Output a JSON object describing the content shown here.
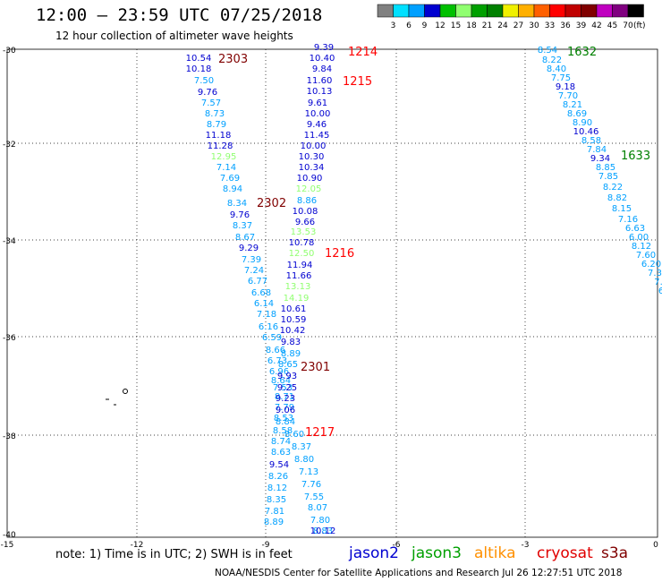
{
  "header": {
    "title": "12:00 – 23:59 UTC 07/25/2018",
    "subtitle": "12 hour collection of altimeter wave heights"
  },
  "legend": {
    "unit": "(ft)",
    "ticks": [
      "3",
      "6",
      "9",
      "12",
      "15",
      "18",
      "21",
      "24",
      "27",
      "30",
      "33",
      "36",
      "39",
      "42",
      "45",
      "70"
    ],
    "colors": [
      "#808080",
      "#00e0ff",
      "#00a0ff",
      "#0000d0",
      "#00c000",
      "#90ff70",
      "#00a000",
      "#008000",
      "#f0f000",
      "#ffb000",
      "#ff6000",
      "#ff0000",
      "#c00000",
      "#800000",
      "#c000c0",
      "#800080",
      "#000000"
    ]
  },
  "axes": {
    "lat_labels": [
      "-30",
      "-32",
      "-34",
      "-36",
      "-38",
      "-40"
    ],
    "lon_labels": [
      "-15",
      "-12",
      "-9",
      "-6",
      "-3",
      "0"
    ]
  },
  "tracks": [
    {
      "name": "track-2303",
      "time_label": "2303",
      "time_color": "#800000",
      "points": [
        {
          "v": "10.54",
          "c": "#0000d0"
        },
        {
          "v": "10.18",
          "c": "#0000d0"
        },
        {
          "v": "7.50",
          "c": "#00a0ff"
        },
        {
          "v": "9.76",
          "c": "#0000d0"
        },
        {
          "v": "7.57",
          "c": "#00a0ff"
        },
        {
          "v": "8.73",
          "c": "#00a0ff"
        },
        {
          "v": "8.79",
          "c": "#00a0ff"
        },
        {
          "v": "11.18",
          "c": "#0000d0"
        },
        {
          "v": "11.28",
          "c": "#0000d0"
        },
        {
          "v": "12.95",
          "c": "#90ff70"
        },
        {
          "v": "7.14",
          "c": "#00a0ff"
        },
        {
          "v": "7.69",
          "c": "#00a0ff"
        },
        {
          "v": "8.94",
          "c": "#00a0ff"
        },
        {
          "v": "8.34",
          "c": "#00a0ff"
        },
        {
          "v": "9.76",
          "c": "#0000d0"
        },
        {
          "v": "8.37",
          "c": "#00a0ff"
        },
        {
          "v": "8.67",
          "c": "#00a0ff"
        },
        {
          "v": "9.29",
          "c": "#0000d0"
        },
        {
          "v": "7.39",
          "c": "#00a0ff"
        },
        {
          "v": "7.24",
          "c": "#00a0ff"
        },
        {
          "v": "6.77",
          "c": "#00a0ff"
        },
        {
          "v": "6.68",
          "c": "#00a0ff"
        },
        {
          "v": "6.14",
          "c": "#00a0ff"
        },
        {
          "v": "7.18",
          "c": "#00a0ff"
        },
        {
          "v": "6.16",
          "c": "#00a0ff"
        },
        {
          "v": "6.59",
          "c": "#00a0ff"
        },
        {
          "v": "8.66",
          "c": "#00a0ff"
        },
        {
          "v": "6.73",
          "c": "#00a0ff"
        },
        {
          "v": "6.96",
          "c": "#00a0ff"
        },
        {
          "v": "8.64",
          "c": "#00a0ff"
        },
        {
          "v": "7.53",
          "c": "#00a0ff"
        },
        {
          "v": "8.71",
          "c": "#00a0ff"
        },
        {
          "v": "7.79",
          "c": "#00a0ff"
        },
        {
          "v": "8.53",
          "c": "#00a0ff"
        },
        {
          "v": "8.58",
          "c": "#00a0ff"
        },
        {
          "v": "8.74",
          "c": "#00a0ff"
        },
        {
          "v": "8.63",
          "c": "#00a0ff"
        },
        {
          "v": "9.54",
          "c": "#0000d0"
        },
        {
          "v": "8.26",
          "c": "#00a0ff"
        },
        {
          "v": "8.12",
          "c": "#00a0ff"
        },
        {
          "v": "8.35",
          "c": "#00a0ff"
        },
        {
          "v": "7.81",
          "c": "#00a0ff"
        },
        {
          "v": "8.89",
          "c": "#00a0ff"
        }
      ]
    },
    {
      "name": "track-1214",
      "time_label": "1214",
      "time_color": "#ff0000",
      "points": [
        {
          "v": "9.39",
          "c": "#0000d0"
        },
        {
          "v": "10.40",
          "c": "#0000d0"
        },
        {
          "v": "9.84",
          "c": "#0000d0"
        },
        {
          "v": "11.60",
          "c": "#0000d0"
        },
        {
          "v": "10.13",
          "c": "#0000d0"
        },
        {
          "v": "9.61",
          "c": "#0000d0"
        },
        {
          "v": "10.00",
          "c": "#0000d0"
        },
        {
          "v": "9.46",
          "c": "#0000d0"
        },
        {
          "v": "11.45",
          "c": "#0000d0"
        },
        {
          "v": "10.00",
          "c": "#0000d0"
        },
        {
          "v": "10.30",
          "c": "#0000d0"
        },
        {
          "v": "10.34",
          "c": "#0000d0"
        },
        {
          "v": "10.90",
          "c": "#0000d0"
        },
        {
          "v": "12.05",
          "c": "#90ff70"
        },
        {
          "v": "8.86",
          "c": "#00a0ff"
        },
        {
          "v": "10.08",
          "c": "#0000d0"
        },
        {
          "v": "9.66",
          "c": "#0000d0"
        },
        {
          "v": "13.53",
          "c": "#90ff70"
        },
        {
          "v": "10.78",
          "c": "#0000d0"
        },
        {
          "v": "12.50",
          "c": "#90ff70"
        },
        {
          "v": "11.94",
          "c": "#0000d0"
        },
        {
          "v": "11.66",
          "c": "#0000d0"
        },
        {
          "v": "13.13",
          "c": "#90ff70"
        },
        {
          "v": "14.19",
          "c": "#90ff70"
        },
        {
          "v": "10.61",
          "c": "#0000d0"
        },
        {
          "v": "10.59",
          "c": "#0000d0"
        },
        {
          "v": "10.42",
          "c": "#0000d0"
        },
        {
          "v": "9.83",
          "c": "#0000d0"
        },
        {
          "v": "8.89",
          "c": "#00a0ff"
        },
        {
          "v": "8.65",
          "c": "#00a0ff"
        },
        {
          "v": "9.93",
          "c": "#0000d0"
        },
        {
          "v": "9.25",
          "c": "#0000d0"
        },
        {
          "v": "9.23",
          "c": "#0000d0"
        },
        {
          "v": "9.06",
          "c": "#0000d0"
        },
        {
          "v": "8.84",
          "c": "#00a0ff"
        },
        {
          "v": "8.60",
          "c": "#00a0ff"
        },
        {
          "v": "8.37",
          "c": "#00a0ff"
        },
        {
          "v": "8.80",
          "c": "#00a0ff"
        },
        {
          "v": "7.13",
          "c": "#00a0ff"
        },
        {
          "v": "7.76",
          "c": "#00a0ff"
        },
        {
          "v": "7.55",
          "c": "#00a0ff"
        },
        {
          "v": "8.07",
          "c": "#00a0ff"
        },
        {
          "v": "7.80",
          "c": "#00a0ff"
        },
        {
          "v": "8.83",
          "c": "#00a0ff"
        },
        {
          "v": "10.12",
          "c": "#0000d0"
        }
      ]
    },
    {
      "name": "track-1632",
      "time_label": "1632",
      "time_color": "#008000",
      "points": [
        {
          "v": "8.54",
          "c": "#00a0ff"
        },
        {
          "v": "8.22",
          "c": "#00a0ff"
        },
        {
          "v": "8.40",
          "c": "#00a0ff"
        },
        {
          "v": "7.75",
          "c": "#00a0ff"
        },
        {
          "v": "9.18",
          "c": "#0000d0"
        },
        {
          "v": "7.70",
          "c": "#00a0ff"
        },
        {
          "v": "8.21",
          "c": "#00a0ff"
        },
        {
          "v": "8.69",
          "c": "#00a0ff"
        },
        {
          "v": "8.90",
          "c": "#00a0ff"
        },
        {
          "v": "10.46",
          "c": "#0000d0"
        },
        {
          "v": "8.58",
          "c": "#00a0ff"
        },
        {
          "v": "7.84",
          "c": "#00a0ff"
        },
        {
          "v": "9.34",
          "c": "#0000d0"
        },
        {
          "v": "8.85",
          "c": "#00a0ff"
        },
        {
          "v": "7.85",
          "c": "#00a0ff"
        },
        {
          "v": "8.22",
          "c": "#00a0ff"
        },
        {
          "v": "8.82",
          "c": "#00a0ff"
        },
        {
          "v": "8.15",
          "c": "#00a0ff"
        },
        {
          "v": "7.16",
          "c": "#00a0ff"
        },
        {
          "v": "6.63",
          "c": "#00a0ff"
        },
        {
          "v": "6.00",
          "c": "#00a0ff"
        },
        {
          "v": "8.12",
          "c": "#00a0ff"
        },
        {
          "v": "7.60",
          "c": "#00a0ff"
        },
        {
          "v": "6.20",
          "c": "#00a0ff"
        },
        {
          "v": "7.3",
          "c": "#00a0ff"
        },
        {
          "v": "7.",
          "c": "#00a0ff"
        },
        {
          "v": "6",
          "c": "#00a0ff"
        }
      ]
    }
  ],
  "time_markers": [
    {
      "label": "2302",
      "color": "#800000"
    },
    {
      "label": "2301",
      "color": "#800000"
    },
    {
      "label": "1215",
      "color": "#ff0000"
    },
    {
      "label": "1216",
      "color": "#ff0000"
    },
    {
      "label": "1217",
      "color": "#ff0000"
    },
    {
      "label": "1633",
      "color": "#008000"
    }
  ],
  "footer": {
    "note": "note:  1) Time is in UTC;  2) SWH is in feet",
    "credit": "NOAA/NESDIS Center for Satellite Applications and Research     Jul 26 12:27:51 UTC 2018",
    "satellites": [
      {
        "name": "jason2",
        "color": "#0000d0"
      },
      {
        "name": "jason3",
        "color": "#00a000"
      },
      {
        "name": "altika",
        "color": "#ff9000"
      },
      {
        "name": "cryosat",
        "color": "#e00000"
      },
      {
        "name": "s3a",
        "color": "#800000"
      }
    ]
  }
}
